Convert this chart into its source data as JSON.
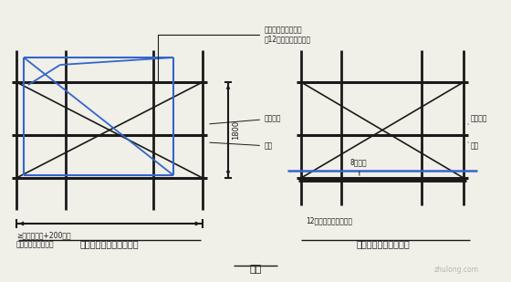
{
  "bg_color": "#f0efe8",
  "title": "图四",
  "left_title": "窗洞口（室内临边）防护",
  "right_title": "阳台或落地窗洞口防护",
  "dim_text": "1800",
  "black": "#1a1a1a",
  "blue": "#3366cc"
}
